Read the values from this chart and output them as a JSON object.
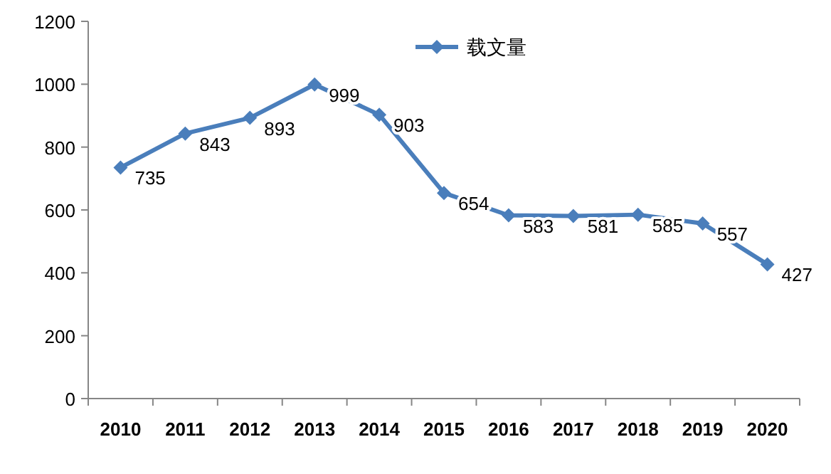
{
  "chart_data": {
    "type": "line",
    "categories": [
      "2010",
      "2011",
      "2012",
      "2013",
      "2014",
      "2015",
      "2016",
      "2017",
      "2018",
      "2019",
      "2020"
    ],
    "series": [
      {
        "name": "载文量",
        "color": "#4a7ebb",
        "values": [
          735,
          843,
          893,
          999,
          903,
          654,
          583,
          581,
          585,
          557,
          427
        ]
      }
    ],
    "ylim": [
      0,
      1200
    ],
    "yticks": [
      0,
      200,
      400,
      600,
      800,
      1000,
      1200
    ],
    "marker": "diamond",
    "data_labels": true,
    "legend": "top",
    "grid": false
  }
}
